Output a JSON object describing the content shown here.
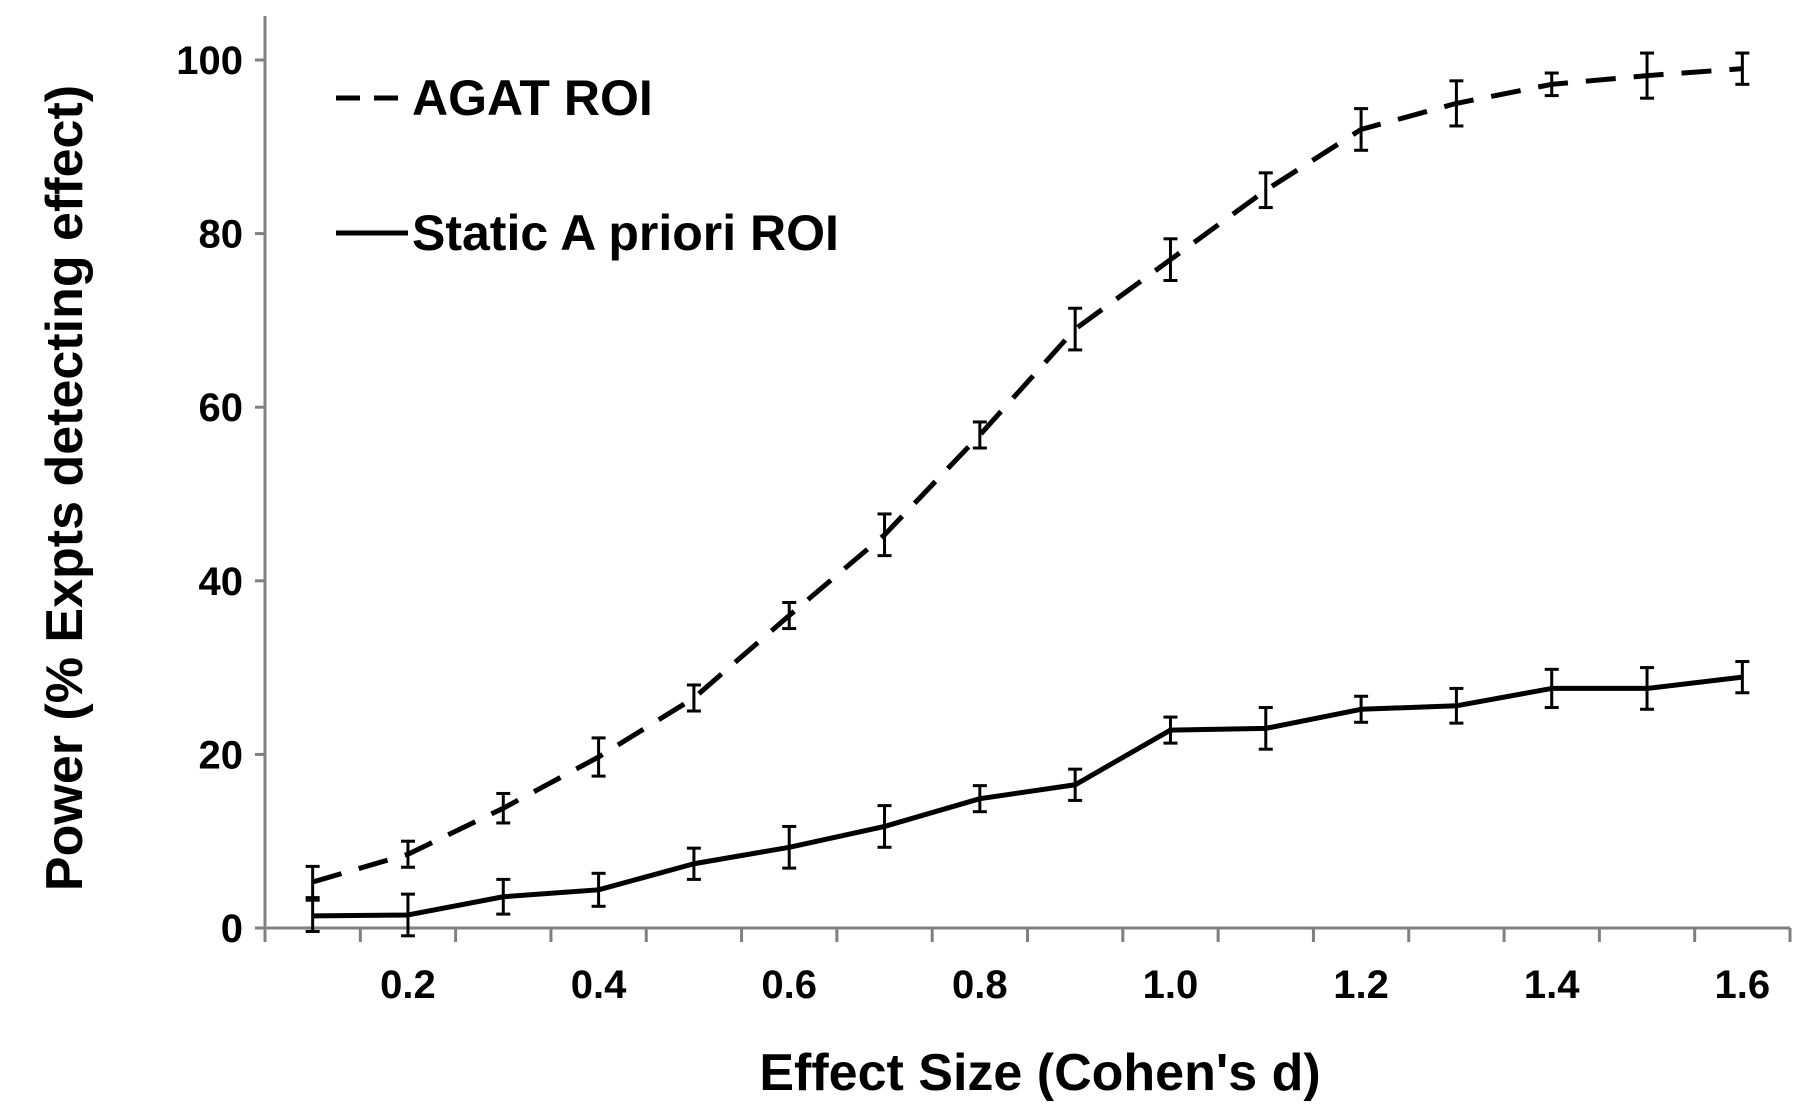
{
  "chart_data": {
    "type": "line",
    "xlabel": "Effect Size (Cohen's d)",
    "ylabel": "Power (% Expts detecting effect)",
    "xlim": [
      0.05,
      1.65
    ],
    "ylim": [
      0,
      100
    ],
    "x_ticks": [
      "0.2",
      "0.4",
      "0.6",
      "0.8",
      "1.0",
      "1.2",
      "1.4",
      "1.6"
    ],
    "y_ticks": [
      "0",
      "20",
      "40",
      "60",
      "80",
      "100"
    ],
    "grid": false,
    "legend_position": "top-left",
    "x": [
      0.1,
      0.2,
      0.3,
      0.4,
      0.5,
      0.6,
      0.7,
      0.8,
      0.9,
      1.0,
      1.1,
      1.2,
      1.3,
      1.4,
      1.5,
      1.6
    ],
    "series": [
      {
        "name": "AGAT ROI",
        "style": "dashed",
        "color": "#000000",
        "values": [
          5.3,
          8.5,
          13.8,
          19.7,
          26.5,
          36.0,
          45.3,
          56.8,
          69.0,
          77.0,
          85.0,
          92.0,
          95.0,
          97.2,
          98.2,
          99.0
        ],
        "errors": [
          1.8,
          1.5,
          1.7,
          2.2,
          1.5,
          1.5,
          2.4,
          1.5,
          2.4,
          2.4,
          2.0,
          2.4,
          2.6,
          1.3,
          2.6,
          1.8
        ]
      },
      {
        "name": "Static A priori ROI",
        "style": "solid",
        "color": "#000000",
        "values": [
          1.4,
          1.5,
          3.6,
          4.4,
          7.4,
          9.3,
          11.7,
          14.9,
          16.5,
          22.8,
          23.0,
          25.2,
          25.6,
          27.6,
          27.6,
          28.9
        ],
        "errors": [
          1.8,
          2.4,
          2.0,
          1.9,
          1.8,
          2.4,
          2.4,
          1.5,
          1.8,
          1.5,
          2.4,
          1.5,
          2.0,
          2.2,
          2.4,
          1.8
        ]
      }
    ]
  }
}
